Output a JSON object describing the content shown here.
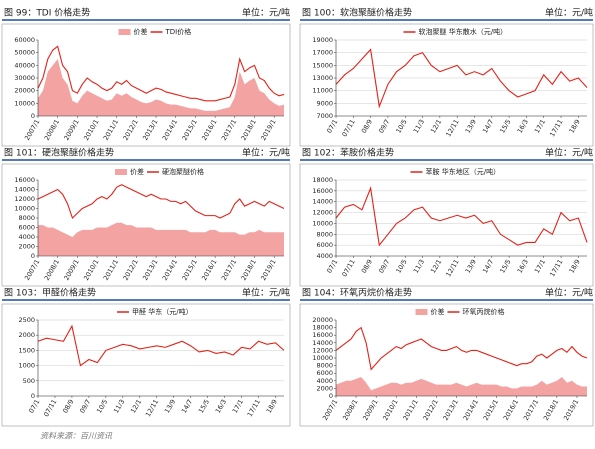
{
  "source": "资料来源：百川资讯",
  "chart_data": [
    {
      "type": "line",
      "title": "图 99：TDI 价格走势",
      "unit": "单位：元/吨",
      "grid": false,
      "categories": [
        "2007/1",
        null,
        null,
        null,
        "2008/1",
        null,
        null,
        null,
        "2009/1",
        null,
        null,
        null,
        "2010/1",
        null,
        null,
        null,
        "2011/1",
        null,
        null,
        null,
        "2012/1",
        null,
        null,
        null,
        "2013/1",
        null,
        null,
        null,
        "2014/1",
        null,
        null,
        null,
        "2015/1",
        null,
        null,
        null,
        "2016/1",
        null,
        null,
        null,
        "2017/1",
        null,
        null,
        null,
        "2018/1",
        null,
        null,
        null,
        "2019/1",
        null,
        null
      ],
      "ylim": [
        0,
        60000
      ],
      "yticks": [
        0,
        10000,
        20000,
        30000,
        40000,
        50000,
        60000
      ],
      "series": [
        {
          "name": "价差",
          "kind": "area",
          "color": "#f4a3a3",
          "values": [
            14000,
            20000,
            35000,
            40000,
            45000,
            30000,
            25000,
            12000,
            10000,
            16000,
            20000,
            18000,
            16000,
            14000,
            12000,
            13000,
            18000,
            16000,
            18000,
            15000,
            13000,
            11000,
            10000,
            11000,
            13000,
            12000,
            10000,
            9000,
            9000,
            8000,
            7000,
            6000,
            6000,
            5000,
            4000,
            4000,
            4000,
            5000,
            6000,
            7000,
            15000,
            35000,
            25000,
            28000,
            30000,
            20000,
            18000,
            13000,
            10000,
            8000,
            9000
          ]
        },
        {
          "name": "TDI价格",
          "kind": "line",
          "color": "#e2231a",
          "values": [
            22000,
            30000,
            45000,
            52000,
            55000,
            40000,
            35000,
            20000,
            18000,
            25000,
            30000,
            27000,
            25000,
            22000,
            20000,
            22000,
            27000,
            25000,
            28000,
            24000,
            22000,
            20000,
            18000,
            20000,
            22000,
            21000,
            19000,
            18000,
            17000,
            16000,
            15000,
            14000,
            14000,
            13000,
            12000,
            12000,
            12000,
            13000,
            14000,
            15000,
            25000,
            45000,
            35000,
            38000,
            40000,
            30000,
            28000,
            22000,
            18000,
            16000,
            17000
          ]
        }
      ]
    },
    {
      "type": "line",
      "title": "图 100：软泡聚醚价格走势",
      "unit": "单位：元/吨",
      "grid": true,
      "categories": [
        "07/1",
        null,
        "07/11",
        null,
        "08/9",
        null,
        "09/7",
        null,
        "10/5",
        null,
        "11/3",
        null,
        "12/1",
        null,
        "12/11",
        null,
        "13/9",
        null,
        "14/7",
        null,
        "15/5",
        null,
        "16/3",
        null,
        "17/1",
        null,
        "17/11",
        null,
        "18/9",
        null
      ],
      "ylim": [
        7000,
        19000
      ],
      "yticks": [
        7000,
        9000,
        11000,
        13000,
        15000,
        17000,
        19000
      ],
      "series": [
        {
          "name": "软泡聚醚 华东散水（元/吨）",
          "kind": "line",
          "color": "#e2231a",
          "values": [
            12000,
            13500,
            14500,
            16000,
            17500,
            8500,
            12000,
            14000,
            15000,
            16500,
            17000,
            15000,
            14000,
            14500,
            15000,
            13500,
            14000,
            13500,
            14500,
            12500,
            11000,
            10000,
            10500,
            11000,
            13500,
            12000,
            14000,
            12500,
            13000,
            11500
          ]
        }
      ]
    },
    {
      "type": "line",
      "title": "图 101：硬泡聚醚价格走势",
      "unit": "单位：元/吨",
      "grid": false,
      "categories": [
        "2007/1",
        null,
        null,
        null,
        "2008/1",
        null,
        null,
        null,
        "2009/1",
        null,
        null,
        null,
        "2010/1",
        null,
        null,
        null,
        "2011/1",
        null,
        null,
        null,
        "2012/1",
        null,
        null,
        null,
        "2013/1",
        null,
        null,
        null,
        "2014/1",
        null,
        null,
        null,
        "2015/1",
        null,
        null,
        null,
        "2016/1",
        null,
        null,
        null,
        "2017/1",
        null,
        null,
        null,
        "2018/1",
        null,
        null,
        null,
        "2019/1",
        null,
        null
      ],
      "ylim": [
        0,
        16000
      ],
      "yticks": [
        0,
        2000,
        4000,
        6000,
        8000,
        10000,
        12000,
        14000,
        16000
      ],
      "series": [
        {
          "name": "价差",
          "kind": "area",
          "color": "#f4a3a3",
          "values": [
            6500,
            6500,
            6000,
            6000,
            5500,
            5000,
            4500,
            4000,
            5000,
            5500,
            5500,
            5500,
            6000,
            6000,
            6000,
            6500,
            7000,
            7000,
            6500,
            6500,
            6000,
            6000,
            6000,
            6000,
            5500,
            5500,
            5500,
            5500,
            5500,
            5500,
            5500,
            5000,
            5000,
            5000,
            5000,
            5500,
            5500,
            5000,
            5000,
            5000,
            5000,
            4500,
            4500,
            5000,
            5000,
            5500,
            5000,
            5000,
            5000,
            5000,
            5000
          ]
        },
        {
          "name": "硬泡聚醚价格",
          "kind": "line",
          "color": "#e2231a",
          "values": [
            12000,
            12500,
            13000,
            13500,
            14000,
            13000,
            11000,
            8000,
            9000,
            10000,
            10500,
            11000,
            12000,
            12500,
            12000,
            13000,
            14500,
            15000,
            14500,
            14000,
            13500,
            13000,
            12500,
            13000,
            12500,
            12000,
            12000,
            11500,
            11500,
            11000,
            11500,
            10500,
            9500,
            9000,
            8500,
            8500,
            8500,
            8000,
            8500,
            9000,
            11000,
            12000,
            10500,
            11000,
            11500,
            11000,
            10500,
            11500,
            11000,
            10500,
            10000
          ]
        }
      ]
    },
    {
      "type": "line",
      "title": "图 102：苯胺价格走势",
      "unit": "单位：元/吨",
      "grid": true,
      "categories": [
        "07/1",
        null,
        "07/11",
        null,
        "08/9",
        null,
        "09/7",
        null,
        "10/5",
        null,
        "11/3",
        null,
        "12/1",
        null,
        "12/11",
        null,
        "13/9",
        null,
        "14/7",
        null,
        "15/5",
        null,
        "16/3",
        null,
        "17/1",
        null,
        "17/11",
        null,
        "18/9",
        null
      ],
      "ylim": [
        4000,
        18000
      ],
      "yticks": [
        4000,
        6000,
        8000,
        10000,
        12000,
        14000,
        16000,
        18000
      ],
      "series": [
        {
          "name": "苯胺 华东地区（元/吨）",
          "kind": "line",
          "color": "#e2231a",
          "values": [
            11000,
            13000,
            13500,
            12500,
            16500,
            6000,
            8000,
            10000,
            11000,
            12500,
            13000,
            11000,
            10500,
            11000,
            11500,
            11000,
            11500,
            10000,
            10500,
            8000,
            7000,
            6000,
            6500,
            6500,
            9000,
            8000,
            12000,
            10500,
            11000,
            6500
          ]
        }
      ]
    },
    {
      "type": "line",
      "title": "图 103：甲醛价格走势",
      "unit": "单位：元/吨",
      "grid": true,
      "categories": [
        "07/1",
        null,
        "07/11",
        null,
        "08/9",
        null,
        "09/7",
        null,
        "10/5",
        null,
        "11/3",
        null,
        "12/1",
        null,
        "12/11",
        null,
        "13/9",
        null,
        "14/7",
        null,
        "15/5",
        null,
        "16/3",
        null,
        "17/1",
        null,
        "17/11",
        null,
        "18/9",
        null
      ],
      "ylim": [
        0,
        2500
      ],
      "yticks": [
        0,
        500,
        1000,
        1500,
        2000,
        2500
      ],
      "series": [
        {
          "name": "甲醛 华东（元/吨）",
          "kind": "line",
          "color": "#e2231a",
          "values": [
            1800,
            1900,
            1850,
            1800,
            2300,
            1000,
            1200,
            1100,
            1500,
            1600,
            1700,
            1650,
            1550,
            1600,
            1650,
            1600,
            1700,
            1800,
            1650,
            1450,
            1500,
            1400,
            1450,
            1350,
            1600,
            1550,
            1800,
            1700,
            1750,
            1500
          ]
        }
      ]
    },
    {
      "type": "line",
      "title": "图 104：环氧丙烷价格走势",
      "unit": "单位：元/吨",
      "grid": false,
      "categories": [
        "2007/1",
        null,
        null,
        null,
        "2008/1",
        null,
        null,
        null,
        "2009/1",
        null,
        null,
        null,
        "2010/1",
        null,
        null,
        null,
        "2011/1",
        null,
        null,
        null,
        "2012/1",
        null,
        null,
        null,
        "2013/1",
        null,
        null,
        null,
        "2014/1",
        null,
        null,
        null,
        "2015/1",
        null,
        null,
        null,
        "2016/1",
        null,
        null,
        null,
        "2017/1",
        null,
        null,
        null,
        "2018/1",
        null,
        null,
        null,
        "2019/1",
        null,
        null
      ],
      "ylim": [
        0,
        20000
      ],
      "yticks": [
        0,
        2000,
        4000,
        6000,
        8000,
        10000,
        12000,
        14000,
        16000,
        18000,
        20000
      ],
      "series": [
        {
          "name": "价差",
          "kind": "area",
          "color": "#f4a3a3",
          "values": [
            3000,
            3500,
            4000,
            4000,
            4500,
            5000,
            3500,
            1500,
            2000,
            2500,
            3000,
            3500,
            3500,
            3000,
            3500,
            3500,
            4000,
            4500,
            4000,
            3500,
            3000,
            3000,
            3000,
            3000,
            3500,
            3000,
            2500,
            3000,
            3500,
            3000,
            3000,
            3000,
            3000,
            2500,
            2500,
            2000,
            2000,
            2500,
            2500,
            2500,
            3000,
            4000,
            3000,
            3500,
            4000,
            5000,
            3500,
            4000,
            3000,
            2500,
            2500
          ]
        },
        {
          "name": "环氧丙烷价格",
          "kind": "line",
          "color": "#e2231a",
          "values": [
            12000,
            13000,
            14000,
            15000,
            17000,
            18000,
            14000,
            7000,
            8500,
            10000,
            11000,
            12000,
            13000,
            12500,
            13500,
            14000,
            14500,
            15000,
            14000,
            13000,
            12500,
            12000,
            12000,
            12500,
            13000,
            12000,
            11500,
            12000,
            12000,
            11500,
            11000,
            10500,
            10000,
            9500,
            9000,
            8500,
            8000,
            8500,
            8500,
            9000,
            10500,
            11000,
            10000,
            11000,
            12000,
            12500,
            11500,
            13000,
            11500,
            10500,
            10000
          ]
        }
      ]
    }
  ]
}
